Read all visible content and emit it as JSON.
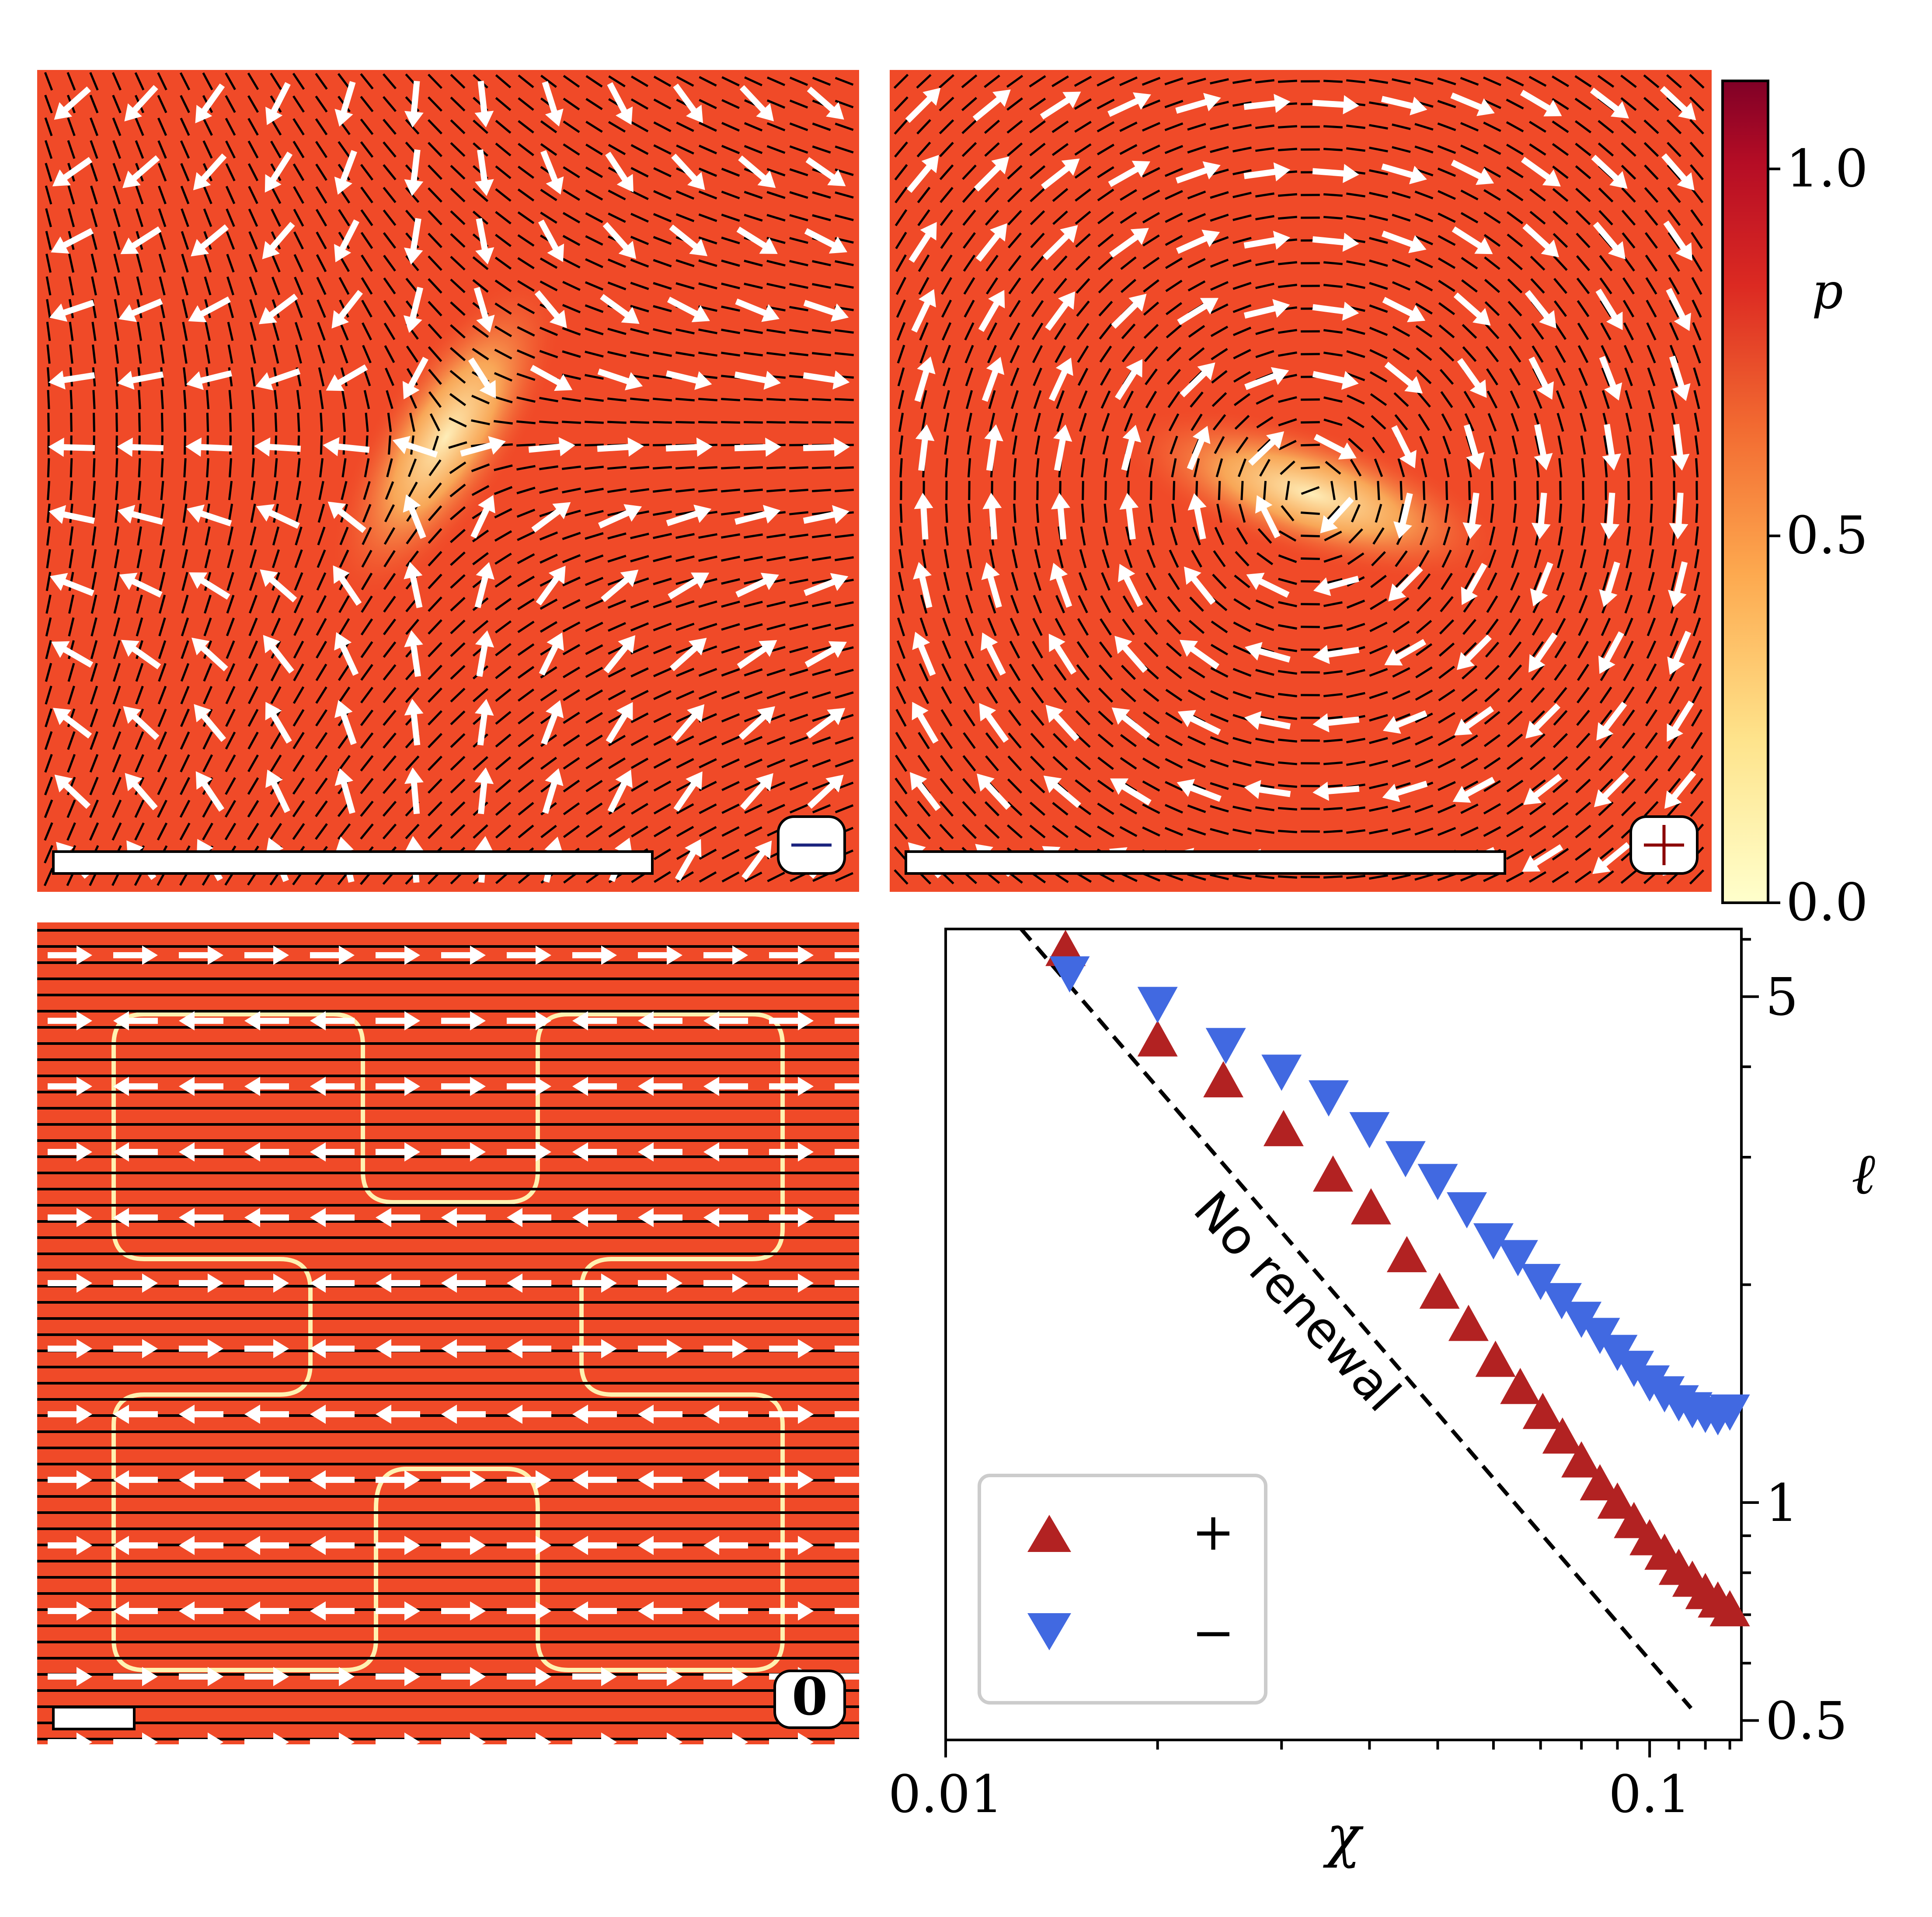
{
  "panels": {
    "top_left": {
      "badge": "−",
      "badge_color": "#1a237e"
    },
    "top_right": {
      "badge": "+",
      "badge_color": "#8b0000"
    },
    "bottom_left": {
      "badge": "0",
      "badge_color": "#000000"
    }
  },
  "colorbar": {
    "label": "p",
    "ticks": [
      "1.0",
      "0.5",
      "0.0"
    ],
    "tick_values": [
      1.0,
      0.5,
      0.0
    ],
    "range": [
      0.0,
      1.12
    ],
    "colormap": "YlOrRd",
    "field_color": "#f04a28"
  },
  "chart_data": {
    "type": "scatter",
    "title": "",
    "xlabel": "χ",
    "ylabel": "ℓ",
    "xscale": "log",
    "yscale": "log",
    "xlim": [
      0.01,
      0.135
    ],
    "ylim": [
      0.47,
      6.2
    ],
    "xticks": [
      "0.01",
      "0.1"
    ],
    "yticks": [
      "5",
      "1",
      "0.5"
    ],
    "annotation": "No renewal",
    "legend_position": "bottom-left",
    "series": [
      {
        "name": "+",
        "marker": "triangle-up",
        "color": "#b22222",
        "points": [
          [
            0.0148,
            5.8
          ],
          [
            0.02,
            4.35
          ],
          [
            0.0248,
            3.82
          ],
          [
            0.0302,
            3.27
          ],
          [
            0.0355,
            2.83
          ],
          [
            0.0402,
            2.55
          ],
          [
            0.0452,
            2.19
          ],
          [
            0.0503,
            1.95
          ],
          [
            0.0553,
            1.76
          ],
          [
            0.0604,
            1.57
          ],
          [
            0.0655,
            1.44
          ],
          [
            0.0705,
            1.33
          ],
          [
            0.0752,
            1.23
          ],
          [
            0.08,
            1.14
          ],
          [
            0.085,
            1.06
          ],
          [
            0.09,
            1.0
          ],
          [
            0.095,
            0.94
          ],
          [
            0.1,
            0.89
          ],
          [
            0.105,
            0.85
          ],
          [
            0.11,
            0.81
          ],
          [
            0.115,
            0.78
          ],
          [
            0.12,
            0.75
          ],
          [
            0.125,
            0.73
          ],
          [
            0.13,
            0.71
          ]
        ]
      },
      {
        "name": "−",
        "marker": "triangle-down",
        "color": "#4169e1",
        "points": [
          [
            0.015,
            5.4
          ],
          [
            0.02,
            4.9
          ],
          [
            0.025,
            4.3
          ],
          [
            0.03,
            3.95
          ],
          [
            0.035,
            3.64
          ],
          [
            0.04,
            3.29
          ],
          [
            0.045,
            3.0
          ],
          [
            0.05,
            2.79
          ],
          [
            0.055,
            2.55
          ],
          [
            0.06,
            2.31
          ],
          [
            0.065,
            2.19
          ],
          [
            0.07,
            2.03
          ],
          [
            0.075,
            1.91
          ],
          [
            0.08,
            1.8
          ],
          [
            0.085,
            1.71
          ],
          [
            0.09,
            1.62
          ],
          [
            0.095,
            1.54
          ],
          [
            0.1,
            1.47
          ],
          [
            0.105,
            1.42
          ],
          [
            0.11,
            1.38
          ],
          [
            0.115,
            1.35
          ],
          [
            0.12,
            1.33
          ],
          [
            0.125,
            1.32
          ],
          [
            0.13,
            1.34
          ]
        ]
      }
    ],
    "reference_line": {
      "label": "No renewal",
      "x": [
        0.0128,
        0.1145
      ],
      "y": [
        6.2,
        0.52
      ],
      "style": "dashed"
    }
  }
}
